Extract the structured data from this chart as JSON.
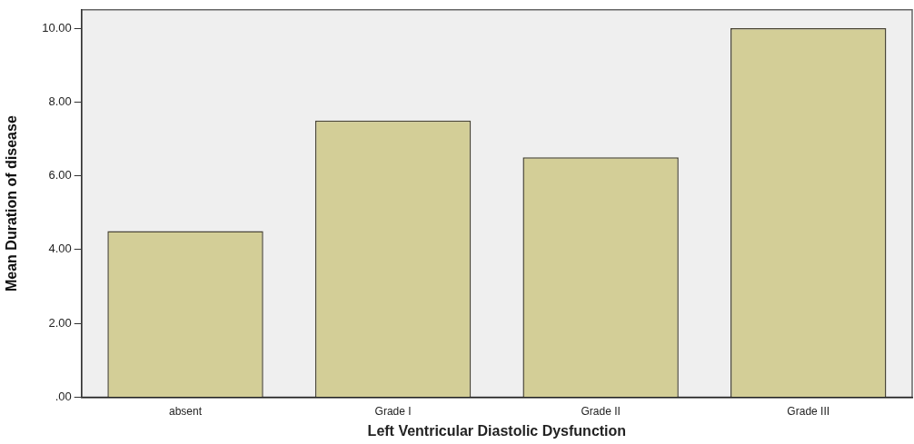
{
  "chart_data": {
    "type": "bar",
    "xlabel": "Left Ventricular Diastolic Dysfunction",
    "ylabel": "Mean Duration of disease",
    "categories": [
      "absent",
      "Grade I",
      "Grade II",
      "Grade III"
    ],
    "values": [
      4.5,
      7.5,
      6.5,
      10.0
    ],
    "color": "#d3ce97",
    "ylim": [
      0,
      10.5
    ],
    "yticks": [
      {
        "value": 0,
        "label": ".00"
      },
      {
        "value": 2,
        "label": "2.00"
      },
      {
        "value": 4,
        "label": "4.00"
      },
      {
        "value": 6,
        "label": "6.00"
      },
      {
        "value": 8,
        "label": "8.00"
      },
      {
        "value": 10,
        "label": "10.00"
      }
    ],
    "grid": false
  }
}
